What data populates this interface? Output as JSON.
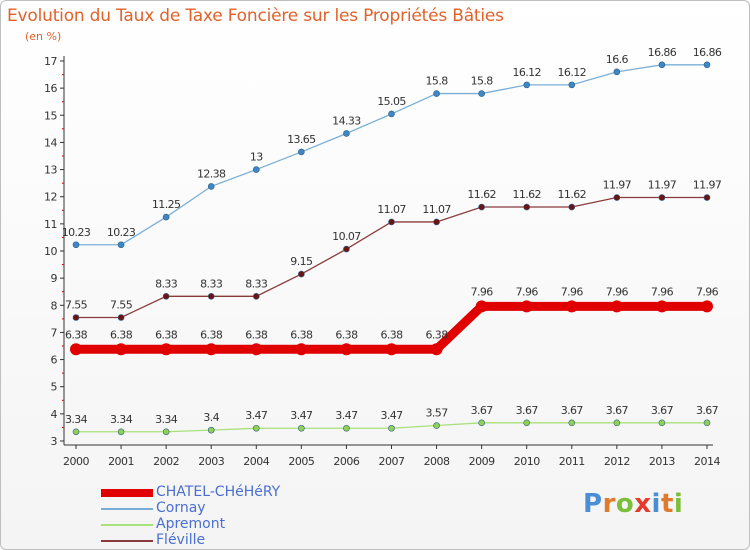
{
  "title": "Evolution du Taux de Taxe Foncière sur les Propriétés Bâties",
  "unit_label": "(en %)",
  "colors": {
    "title": "#e2612a",
    "axis": "#333333",
    "legend_text": "#4a6fd0"
  },
  "logo": {
    "text": "Proxiti",
    "letter_colors": [
      "#4a8fd6",
      "#e07a2c",
      "#7bbf3a",
      "#e53b2c",
      "#4a8fd6",
      "#e07a2c",
      "#7bbf3a"
    ]
  },
  "chart_data": {
    "type": "line",
    "title": "Evolution du Taux de Taxe Foncière sur les Propriétés Bâties",
    "ylabel": "(en %)",
    "xlabel": "",
    "x": [
      2000,
      2001,
      2002,
      2003,
      2004,
      2005,
      2006,
      2007,
      2008,
      2009,
      2010,
      2011,
      2012,
      2013,
      2014
    ],
    "ylim": [
      3,
      17
    ],
    "yticks": [
      3,
      4,
      5,
      6,
      7,
      8,
      9,
      10,
      11,
      12,
      13,
      14,
      15,
      16,
      17
    ],
    "grid": false,
    "legend_position": "bottom-left",
    "series": [
      {
        "name": "CHATEL-CHéHéRY",
        "color": "#e00000",
        "marker": "#e00000",
        "width": 9,
        "values": [
          6.38,
          6.38,
          6.38,
          6.38,
          6.38,
          6.38,
          6.38,
          6.38,
          6.38,
          7.96,
          7.96,
          7.96,
          7.96,
          7.96,
          7.96
        ],
        "labels": [
          "6.38",
          "6.38",
          "6.38",
          "6.38",
          "6.38",
          "6.38",
          "6.38",
          "6.38",
          "6.38",
          "7.96",
          "7.96",
          "7.96",
          "7.96",
          "7.96",
          "7.96"
        ]
      },
      {
        "name": "Cornay",
        "color": "#7aaed6",
        "marker": "#3f86c4",
        "width": 1.3,
        "values": [
          10.23,
          10.23,
          11.25,
          12.38,
          13,
          13.65,
          14.33,
          15.05,
          15.8,
          15.8,
          16.12,
          16.12,
          16.6,
          16.86,
          16.86
        ],
        "labels": [
          "10.23",
          "10.23",
          "11.25",
          "12.38",
          "13",
          "13.65",
          "14.33",
          "15.05",
          "15.8",
          "15.8",
          "16.12",
          "16.12",
          "16.6",
          "16.86",
          "16.86"
        ]
      },
      {
        "name": "Apremont",
        "color": "#a8e07a",
        "marker": "#8fd055",
        "width": 1.3,
        "values": [
          3.34,
          3.34,
          3.34,
          3.4,
          3.47,
          3.47,
          3.47,
          3.47,
          3.57,
          3.67,
          3.67,
          3.67,
          3.67,
          3.67,
          3.67
        ],
        "labels": [
          "3.34",
          "3.34",
          "3.34",
          "3.4",
          "3.47",
          "3.47",
          "3.47",
          "3.47",
          "3.57",
          "3.67",
          "3.67",
          "3.67",
          "3.67",
          "3.67",
          "3.67"
        ]
      },
      {
        "name": "Fléville",
        "color": "#8a3a3a",
        "marker": "#6b1414",
        "width": 1.3,
        "values": [
          7.55,
          7.55,
          8.33,
          8.33,
          8.33,
          9.15,
          10.07,
          11.07,
          11.07,
          11.62,
          11.62,
          11.62,
          11.97,
          11.97,
          11.97
        ],
        "labels": [
          "7.55",
          "7.55",
          "8.33",
          "8.33",
          "8.33",
          "9.15",
          "10.07",
          "11.07",
          "11.07",
          "11.62",
          "11.62",
          "11.62",
          "11.97",
          "11.97",
          "11.97"
        ]
      }
    ]
  }
}
